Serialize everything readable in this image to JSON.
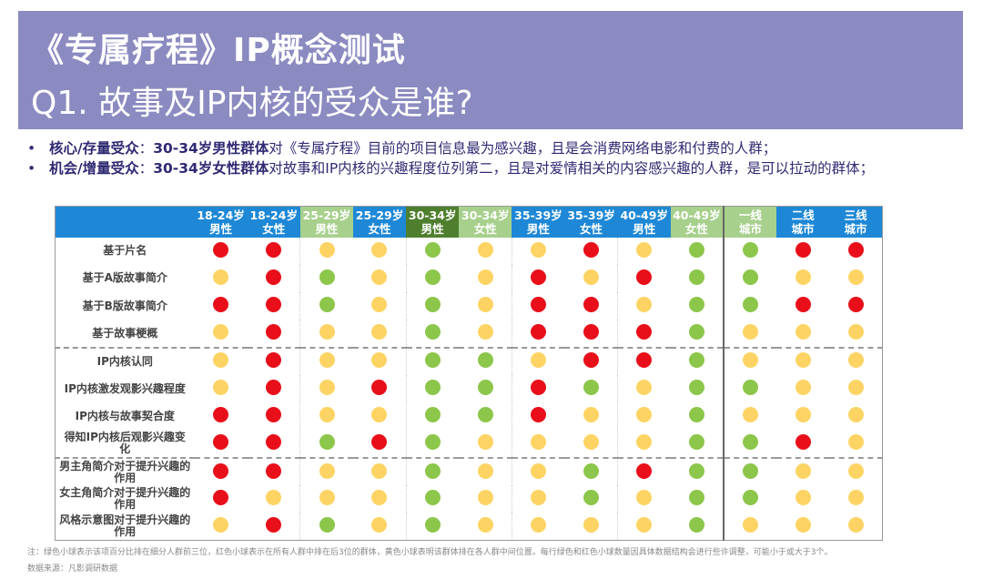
{
  "title": {
    "line1": "《专属疗程》IP概念测试",
    "line2": "Q1. 故事及IP内核的受众是谁?"
  },
  "bullets": [
    {
      "label": "核心/存量受众",
      "sep": "：",
      "highlight": "30-34岁男性群体",
      "text": "对《专属疗程》目前的项目信息最为感兴趣，且是会消费网络电影和付费的人群；"
    },
    {
      "label": "机会/增量受众",
      "sep": "：",
      "highlight": "30-34岁女性群体",
      "text": "对故事和IP内核的兴趣程度位列第二，且是对爱情相关的内容感兴趣的人群，是可以拉动的群体；"
    }
  ],
  "colors": {
    "R": "#e80f1a",
    "Y": "#fdd464",
    "G": "#8cc64a",
    "header_blue": "#1e88d6",
    "header_light_green": "#a8d08d",
    "header_dark_green": "#4f7f2e",
    "title_bg": "#8b8bc1"
  },
  "legend": {
    "G": "green",
    "Y": "yellow",
    "R": "red"
  },
  "columns": [
    {
      "l1": "18-24岁",
      "l2": "男性",
      "c": "blue"
    },
    {
      "l1": "18-24岁",
      "l2": "女性",
      "c": "blue"
    },
    {
      "l1": "25-29岁",
      "l2": "男性",
      "c": "lg"
    },
    {
      "l1": "25-29岁",
      "l2": "女性",
      "c": "blue"
    },
    {
      "l1": "30-34岁",
      "l2": "男性",
      "c": "dg"
    },
    {
      "l1": "30-34岁",
      "l2": "女性",
      "c": "lg"
    },
    {
      "l1": "35-39岁",
      "l2": "男性",
      "c": "blue"
    },
    {
      "l1": "35-39岁",
      "l2": "女性",
      "c": "blue"
    },
    {
      "l1": "40-49岁",
      "l2": "男性",
      "c": "blue"
    },
    {
      "l1": "40-49岁",
      "l2": "女性",
      "c": "lg"
    },
    {
      "l1": "一线",
      "l2": "城市",
      "c": "lg"
    },
    {
      "l1": "二线",
      "l2": "城市",
      "c": "blue"
    },
    {
      "l1": "三线",
      "l2": "城市",
      "c": "blue"
    }
  ],
  "rows": [
    {
      "label": "基于片名",
      "v": "RRYYGYYRYGGRR"
    },
    {
      "label": "基于A版故事简介",
      "v": "YRGYGYRYRGGYY"
    },
    {
      "label": "基于B版故事简介",
      "v": "RRGYGYRRYGGRR"
    },
    {
      "label": "基于故事梗概",
      "v": "YRYYGYRRRGYYY"
    },
    {
      "label": "IP内核认同",
      "v": "YRYYGGYRRGYYY"
    },
    {
      "label": "IP内核激发观影兴趣程度",
      "v": "YRYRGGRGYGGYY"
    },
    {
      "label": "IP内核与故事契合度",
      "v": "RRYYGGRYYGYYY"
    },
    {
      "label": "得知IP内核后观影兴趣变化",
      "v": "RRGRGYYYYGGRY"
    },
    {
      "label": "男主角简介对于提升兴趣的作用",
      "v": "RRYYGYYGRGGYY"
    },
    {
      "label": "女主角简介对于提升兴趣的作用",
      "v": "RYYYGYYGYGGYY"
    },
    {
      "label": "风格示意图对于提升兴趣的作用",
      "v": "YRGYGYYYYGYYY"
    }
  ],
  "note": "注：绿色小球表示该项百分比排在细分人群前三位，红色小球表示在所有人群中排在后3位的群体，黄色小球表明该群体排在各人群中间位置。每行绿色和红色小球数量因具体数据结构会进行些许调整，可能小于或大于3个。",
  "source": "数据来源：凡影调研数据"
}
